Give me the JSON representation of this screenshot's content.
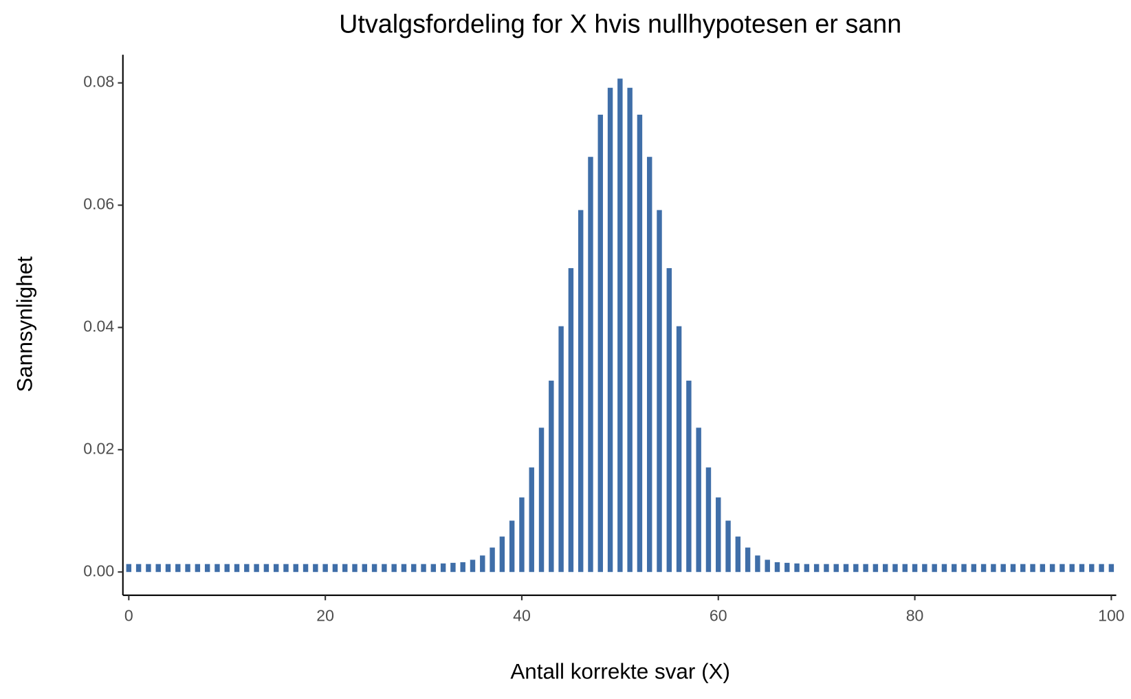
{
  "chart_data": {
    "type": "bar",
    "title": "Utvalgsfordeling for X hvis nullhypotesen er sann",
    "xlabel": "Antall korrekte svar (X)",
    "ylabel": "Sannsynlighet",
    "color": "#3f6ea8",
    "grid": false,
    "x": [
      0,
      1,
      2,
      3,
      4,
      5,
      6,
      7,
      8,
      9,
      10,
      11,
      12,
      13,
      14,
      15,
      16,
      17,
      18,
      19,
      20,
      21,
      22,
      23,
      24,
      25,
      26,
      27,
      28,
      29,
      30,
      31,
      32,
      33,
      34,
      35,
      36,
      37,
      38,
      39,
      40,
      41,
      42,
      43,
      44,
      45,
      46,
      47,
      48,
      49,
      50,
      51,
      52,
      53,
      54,
      55,
      56,
      57,
      58,
      59,
      60,
      61,
      62,
      63,
      64,
      65,
      66,
      67,
      68,
      69,
      70,
      71,
      72,
      73,
      74,
      75,
      76,
      77,
      78,
      79,
      80,
      81,
      82,
      83,
      84,
      85,
      86,
      87,
      88,
      89,
      90,
      91,
      92,
      93,
      94,
      95,
      96,
      97,
      98,
      99,
      100
    ],
    "values": [
      0.0013,
      0.0013,
      0.0013,
      0.0013,
      0.0013,
      0.0013,
      0.0013,
      0.0013,
      0.0013,
      0.0013,
      0.0013,
      0.0013,
      0.0013,
      0.0013,
      0.0013,
      0.0013,
      0.0013,
      0.0013,
      0.0013,
      0.0013,
      0.0013,
      0.0013,
      0.0013,
      0.0013,
      0.0013,
      0.0013,
      0.0013,
      0.0013,
      0.0013,
      0.0013,
      0.0013,
      0.0013,
      0.0014,
      0.0015,
      0.0016,
      0.002,
      0.0027,
      0.004,
      0.0058,
      0.0084,
      0.0122,
      0.0171,
      0.0236,
      0.0313,
      0.0402,
      0.0497,
      0.0592,
      0.0679,
      0.0748,
      0.0792,
      0.0807,
      0.0792,
      0.0748,
      0.0679,
      0.0592,
      0.0497,
      0.0402,
      0.0313,
      0.0236,
      0.0171,
      0.0122,
      0.0084,
      0.0058,
      0.004,
      0.0027,
      0.002,
      0.0016,
      0.0015,
      0.0014,
      0.0013,
      0.0013,
      0.0013,
      0.0013,
      0.0013,
      0.0013,
      0.0013,
      0.0013,
      0.0013,
      0.0013,
      0.0013,
      0.0013,
      0.0013,
      0.0013,
      0.0013,
      0.0013,
      0.0013,
      0.0013,
      0.0013,
      0.0013,
      0.0013,
      0.0013,
      0.0013,
      0.0013,
      0.0013,
      0.0013,
      0.0013,
      0.0013,
      0.0013,
      0.0013,
      0.0013,
      0.0013
    ],
    "xlim": [
      -0.6,
      100.5
    ],
    "xticks": [
      0,
      20,
      40,
      60,
      80,
      100
    ],
    "ylim": [
      -0.0038,
      0.0846
    ],
    "yticks": [
      {
        "value": 0,
        "label": "0.00"
      },
      0.02,
      0.04,
      0.06,
      0.08
    ]
  }
}
